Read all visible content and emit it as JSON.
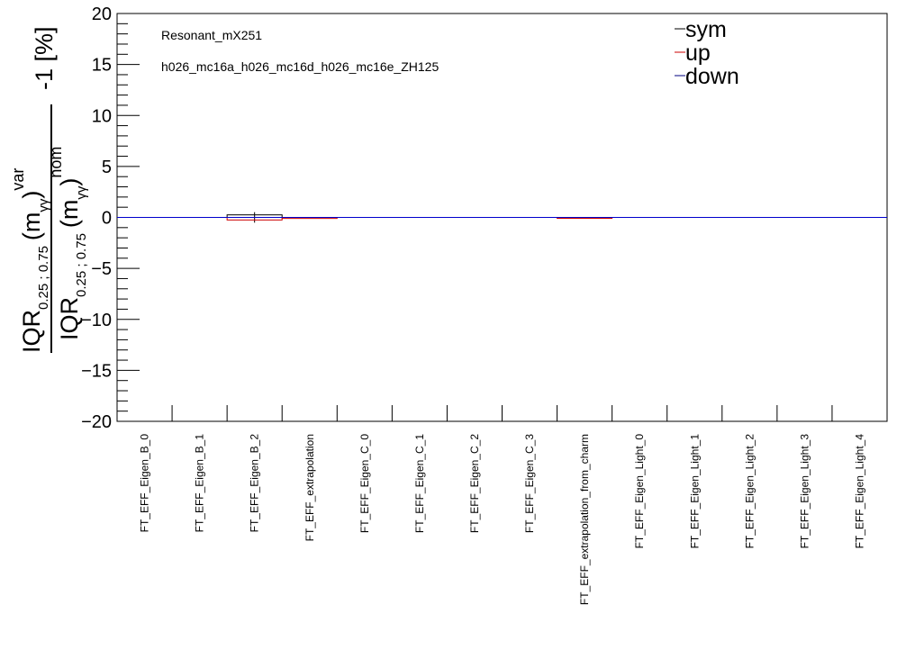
{
  "chart_data": {
    "type": "bar",
    "ylim": [
      -20,
      20
    ],
    "yticks": [
      "20",
      "15",
      "10",
      "5",
      "0",
      "−5",
      "−10",
      "−15",
      "−20"
    ],
    "categories": [
      "FT_EFF_Eigen_B_0",
      "FT_EFF_Eigen_B_1",
      "FT_EFF_Eigen_B_2",
      "FT_EFF_extrapolation",
      "FT_EFF_Eigen_C_0",
      "FT_EFF_Eigen_C_1",
      "FT_EFF_Eigen_C_2",
      "FT_EFF_Eigen_C_3",
      "FT_EFF_extrapolation_from_charm",
      "FT_EFF_Eigen_Light_0",
      "FT_EFF_Eigen_Light_1",
      "FT_EFF_Eigen_Light_2",
      "FT_EFF_Eigen_Light_3",
      "FT_EFF_Eigen_Light_4"
    ],
    "series": [
      {
        "name": "sym",
        "color": "#000000",
        "values": [
          0,
          0,
          0.25,
          0,
          0,
          0,
          0,
          0,
          0,
          0,
          0,
          0,
          0,
          0
        ]
      },
      {
        "name": "up",
        "color": "#cc0000",
        "values": [
          0,
          0,
          -0.25,
          -0.1,
          0,
          0,
          0,
          0,
          -0.05,
          0,
          0,
          0,
          0,
          0
        ]
      },
      {
        "name": "down",
        "color": "#000080",
        "values": [
          0,
          0,
          0,
          0,
          0,
          0,
          0,
          0,
          0,
          0,
          0,
          0,
          0,
          0
        ]
      }
    ],
    "annotations": [
      "Resonant_mX251",
      "h026_mc16a_h026_mc16d_h026_mc16e_ZH125"
    ],
    "ylabel": {
      "main_top": "IQR",
      "sub_top": "0.25 ; 0.75",
      "paren_open": "(m",
      "gg": "γγ",
      "paren_close": ")",
      "sup_top": "var",
      "main_bottom": "IQR",
      "sub_bottom": "0.25 ; 0.75",
      "sup_bottom": "nom",
      "suffix": "-1 [%]"
    },
    "reference_line": 0,
    "reference_color": "#0000cc",
    "legend_position": "top-right"
  }
}
